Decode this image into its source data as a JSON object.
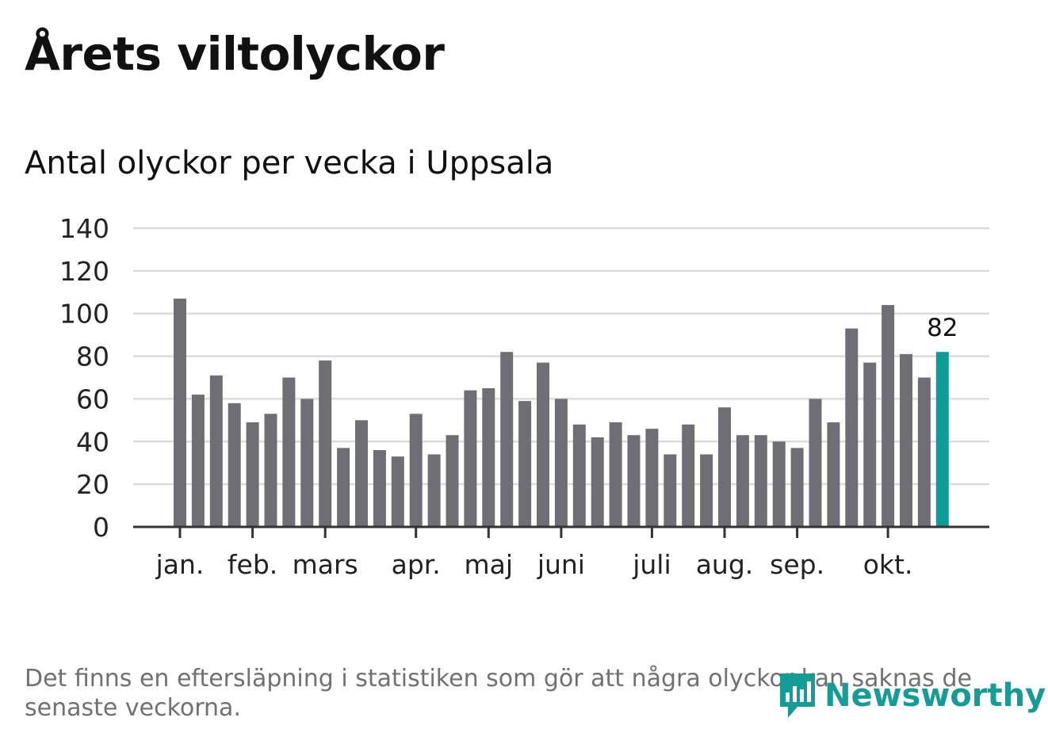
{
  "header": {
    "title": "Årets viltolyckor",
    "subtitle": "Antal olyckor per vecka i Uppsala"
  },
  "colors": {
    "bar": "#6f6e75",
    "highlight": "#0f9b96",
    "grid": "#dcdcdc",
    "axis": "#333333",
    "footnote": "#707075",
    "brand": "#159c96"
  },
  "chart_data": {
    "type": "bar",
    "title": "Antal olyckor per vecka i Uppsala",
    "xlabel": "",
    "ylabel": "",
    "ylim": [
      0,
      140
    ],
    "yticks": [
      0,
      20,
      40,
      60,
      80,
      100,
      120,
      140
    ],
    "grid": true,
    "values": [
      107,
      62,
      71,
      58,
      49,
      53,
      70,
      60,
      78,
      37,
      50,
      36,
      33,
      53,
      34,
      43,
      64,
      65,
      82,
      59,
      77,
      60,
      48,
      42,
      49,
      43,
      46,
      34,
      48,
      34,
      56,
      43,
      43,
      40,
      37,
      60,
      49,
      93,
      77,
      104,
      81,
      70,
      82
    ],
    "month_labels": [
      {
        "label": "jan.",
        "week_index": 0
      },
      {
        "label": "feb.",
        "week_index": 4
      },
      {
        "label": "mars",
        "week_index": 8
      },
      {
        "label": "apr.",
        "week_index": 13
      },
      {
        "label": "maj",
        "week_index": 17
      },
      {
        "label": "juni",
        "week_index": 21
      },
      {
        "label": "juli",
        "week_index": 26
      },
      {
        "label": "aug.",
        "week_index": 30
      },
      {
        "label": "sep.",
        "week_index": 34
      },
      {
        "label": "okt.",
        "week_index": 39
      }
    ],
    "highlight_index": 42,
    "highlight_label": "82"
  },
  "footnote": "Det finns en eftersläpning i statistiken som gör att några olyckor kan saknas de senaste veckorna.",
  "brand": {
    "name": "Newsworthy",
    "icon": "newsworthy-logo-icon"
  }
}
